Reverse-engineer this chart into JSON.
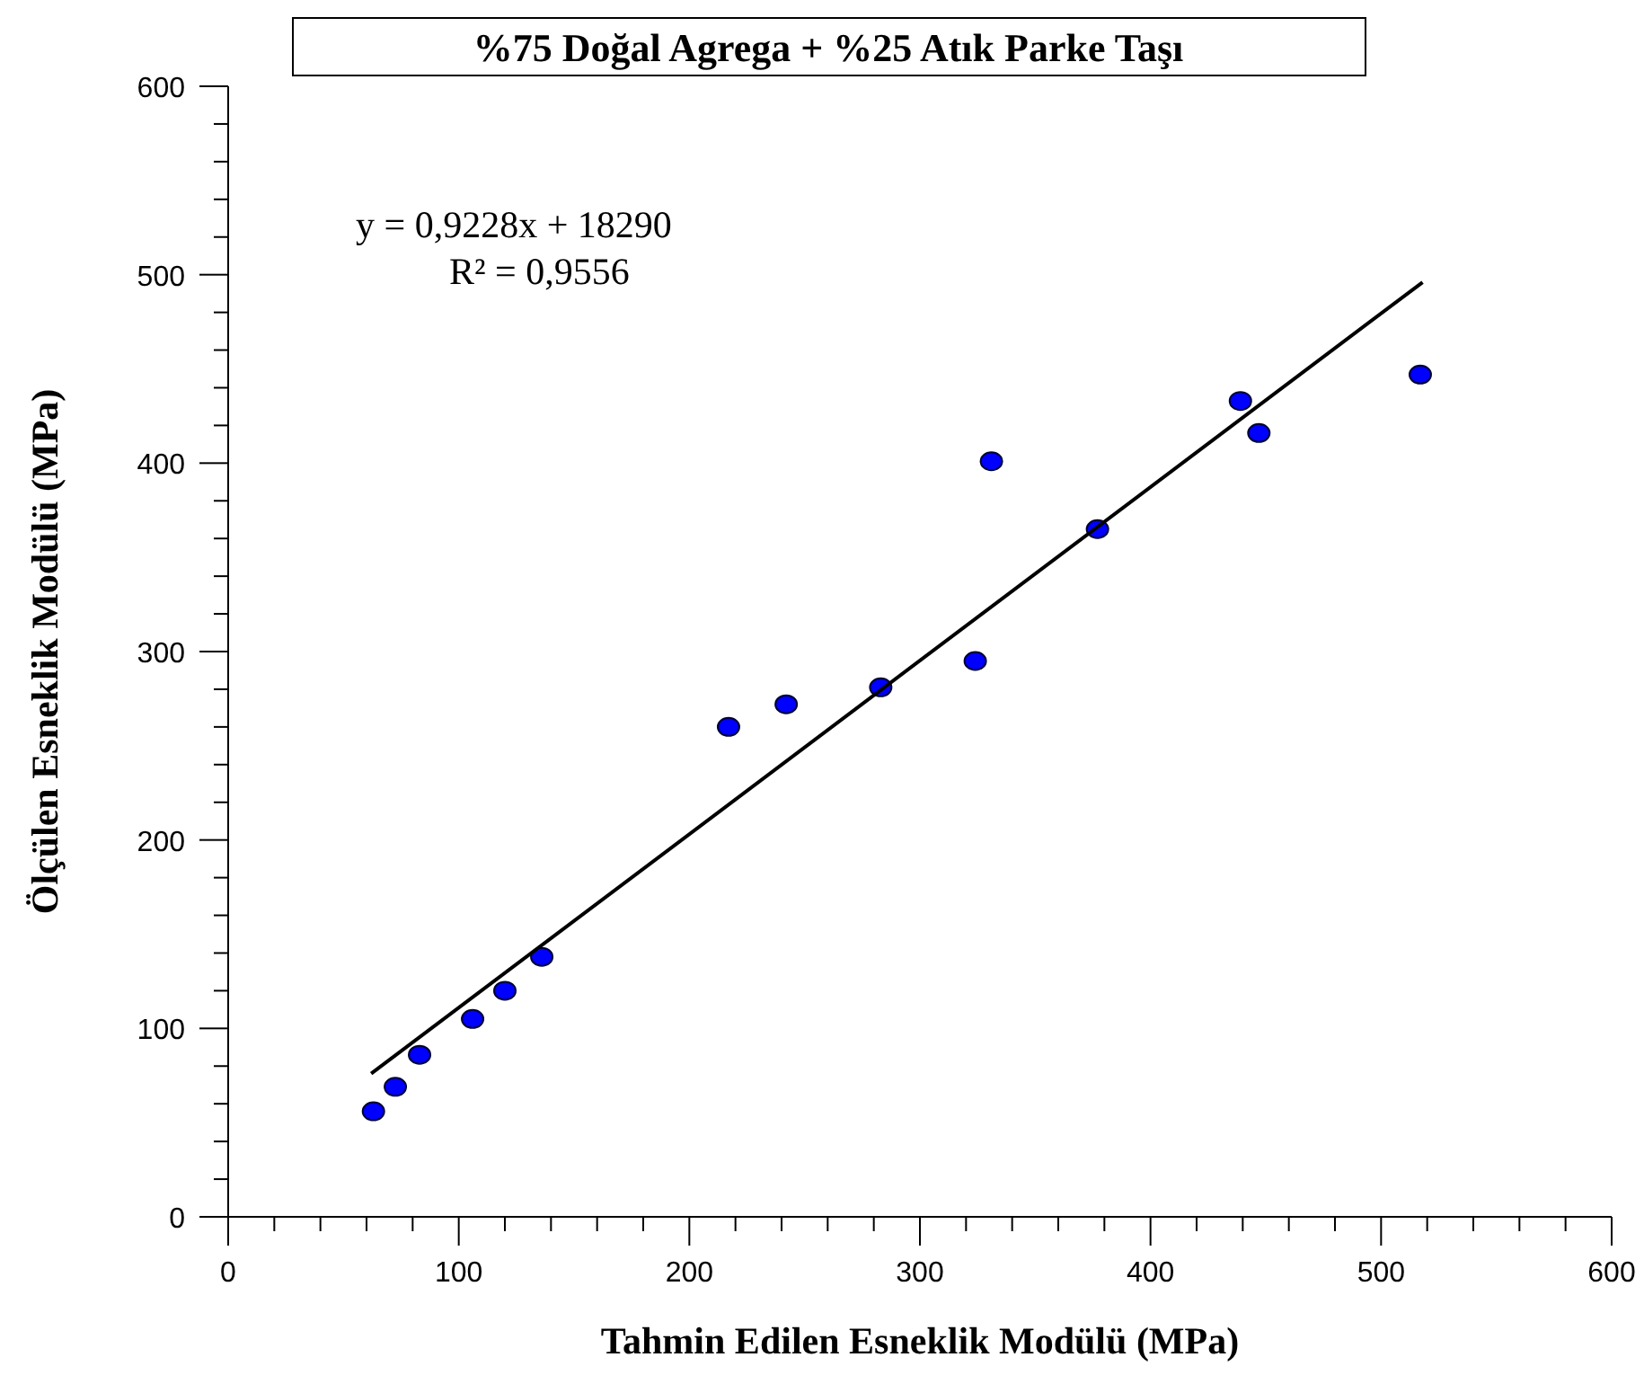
{
  "chart_data": {
    "type": "scatter",
    "title": "%75 Doğal Agrega + %25 Atık Parke Taşı",
    "xlabel": "Tahmin Edilen Esneklik Modülü (MPa)",
    "ylabel": "Ölçülen Esneklik Modülü (MPa)",
    "annotations": [
      "y = 0,9228x + 18290",
      "R² = 0,9556"
    ],
    "xlim": [
      0,
      600
    ],
    "ylim": [
      0,
      600
    ],
    "xticks": [
      0,
      {
        "value": 20,
        "label": null
      },
      {
        "value": 40,
        "label": null
      },
      {
        "value": 60,
        "label": null
      },
      {
        "value": 80,
        "label": null
      },
      100,
      {
        "value": 120,
        "label": null
      },
      {
        "value": 140,
        "label": null
      },
      {
        "value": 160,
        "label": null
      },
      {
        "value": 180,
        "label": null
      },
      200,
      {
        "value": 220,
        "label": null
      },
      {
        "value": 240,
        "label": null
      },
      {
        "value": 260,
        "label": null
      },
      {
        "value": 280,
        "label": null
      },
      300,
      {
        "value": 320,
        "label": null
      },
      {
        "value": 340,
        "label": null
      },
      {
        "value": 360,
        "label": null
      },
      {
        "value": 380,
        "label": null
      },
      400,
      {
        "value": 420,
        "label": null
      },
      {
        "value": 440,
        "label": null
      },
      {
        "value": 460,
        "label": null
      },
      {
        "value": 480,
        "label": null
      },
      500,
      {
        "value": 520,
        "label": null
      },
      {
        "value": 540,
        "label": null
      },
      {
        "value": 560,
        "label": null
      },
      {
        "value": 580,
        "label": null
      },
      600
    ],
    "yticks": [
      0,
      {
        "value": 20,
        "label": null
      },
      {
        "value": 40,
        "label": null
      },
      {
        "value": 60,
        "label": null
      },
      {
        "value": 80,
        "label": null
      },
      100,
      {
        "value": 120,
        "label": null
      },
      {
        "value": 140,
        "label": null
      },
      {
        "value": 160,
        "label": null
      },
      {
        "value": 180,
        "label": null
      },
      200,
      {
        "value": 220,
        "label": null
      },
      {
        "value": 240,
        "label": null
      },
      {
        "value": 260,
        "label": null
      },
      {
        "value": 280,
        "label": null
      },
      300,
      {
        "value": 320,
        "label": null
      },
      {
        "value": 340,
        "label": null
      },
      {
        "value": 360,
        "label": null
      },
      {
        "value": 380,
        "label": null
      },
      400,
      {
        "value": 420,
        "label": null
      },
      {
        "value": 440,
        "label": null
      },
      {
        "value": 460,
        "label": null
      },
      {
        "value": 480,
        "label": null
      },
      500,
      {
        "value": 520,
        "label": null
      },
      {
        "value": 540,
        "label": null
      },
      {
        "value": 560,
        "label": null
      },
      {
        "value": 580,
        "label": null
      },
      600
    ],
    "grid": false,
    "series": [
      {
        "type": "scatter",
        "color": "#0000ff",
        "marker": "circle",
        "x": [
          63,
          72.5,
          83,
          106,
          120,
          136,
          217,
          242,
          283,
          324,
          331,
          377,
          439,
          447,
          517
        ],
        "values": [
          56,
          69,
          86,
          105,
          120,
          138,
          260,
          272,
          281,
          295,
          401,
          365,
          433,
          416,
          447
        ]
      },
      {
        "type": "line",
        "color": "#000000",
        "marker": "none",
        "line_style": "solid",
        "x": [
          62,
          518
        ],
        "values": [
          76,
          496
        ]
      }
    ]
  }
}
